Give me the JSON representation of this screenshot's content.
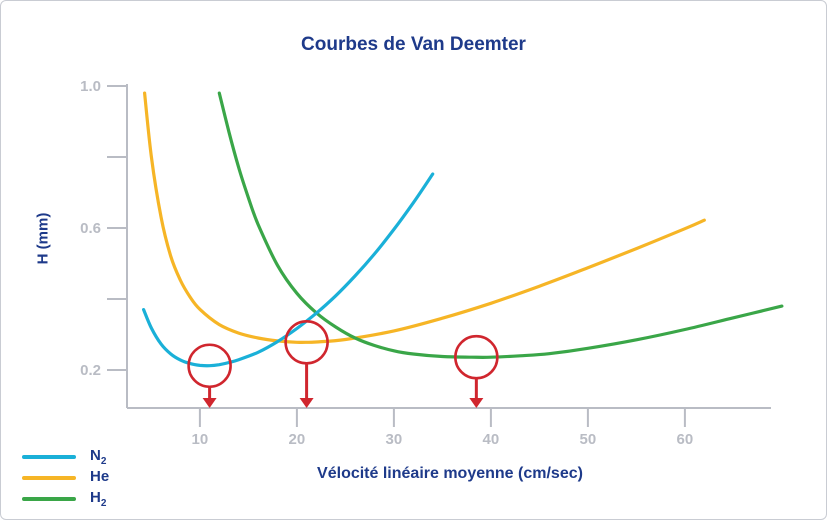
{
  "chart_data": {
    "type": "line",
    "title": "Courbes de Van Deemter",
    "xlabel": "Vélocité linéaire moyenne (cm/sec)",
    "ylabel": "H (mm)",
    "xlim": [
      3,
      70
    ],
    "ylim": [
      0.08,
      1.0
    ],
    "x_ticks": [
      10,
      20,
      30,
      40,
      50,
      60
    ],
    "x_tick_labels": [
      "10",
      "20",
      "30",
      "40",
      "50",
      "60"
    ],
    "y_ticks": [
      0.2,
      0.6,
      1.0
    ],
    "y_tick_labels": [
      "0.2",
      "0.6",
      "1.0"
    ],
    "y_minor_ticks": [
      0.4,
      0.8
    ],
    "grid": false,
    "legend_position": "bottom-left",
    "series": [
      {
        "name": "N2",
        "label_main": "N",
        "label_sub": "2",
        "color": "#1ab0d8",
        "x": [
          4.2,
          5,
          6,
          7,
          8,
          9,
          10,
          11,
          12,
          13,
          14,
          16,
          18,
          20,
          22,
          24,
          26,
          28,
          30,
          32,
          34
        ],
        "y": [
          0.37,
          0.318,
          0.273,
          0.245,
          0.228,
          0.218,
          0.213,
          0.212,
          0.215,
          0.221,
          0.229,
          0.25,
          0.28,
          0.317,
          0.36,
          0.409,
          0.465,
          0.527,
          0.596,
          0.671,
          0.752
        ]
      },
      {
        "name": "He",
        "label_main": "He",
        "label_sub": "",
        "color": "#f6b526",
        "x": [
          4.3,
          5,
          6,
          7,
          8,
          9,
          10,
          12,
          14,
          16,
          18,
          20,
          21,
          22,
          25,
          30,
          35,
          40,
          45,
          50,
          55,
          60,
          62
        ],
        "y": [
          0.98,
          0.8,
          0.63,
          0.52,
          0.452,
          0.405,
          0.371,
          0.328,
          0.304,
          0.29,
          0.282,
          0.278,
          0.278,
          0.279,
          0.286,
          0.31,
          0.346,
          0.388,
          0.436,
          0.488,
          0.542,
          0.598,
          0.622
        ]
      },
      {
        "name": "H2",
        "label_main": "H",
        "label_sub": "2",
        "color": "#3aa648",
        "x": [
          12,
          13,
          14,
          15,
          16,
          18,
          20,
          22,
          24,
          26,
          28,
          30,
          32,
          35,
          38,
          40,
          43,
          46,
          50,
          55,
          60,
          65,
          70
        ],
        "y": [
          0.98,
          0.87,
          0.77,
          0.685,
          0.61,
          0.495,
          0.416,
          0.361,
          0.321,
          0.29,
          0.269,
          0.254,
          0.245,
          0.238,
          0.236,
          0.236,
          0.24,
          0.246,
          0.261,
          0.285,
          0.314,
          0.347,
          0.38
        ]
      }
    ],
    "annotations": {
      "optimum_markers": [
        {
          "series": "N2",
          "x": 11,
          "y": 0.212
        },
        {
          "series": "He",
          "x": 21,
          "y": 0.278
        },
        {
          "series": "H2",
          "x": 38.5,
          "y": 0.236
        }
      ],
      "marker_color": "#d0262e"
    }
  }
}
